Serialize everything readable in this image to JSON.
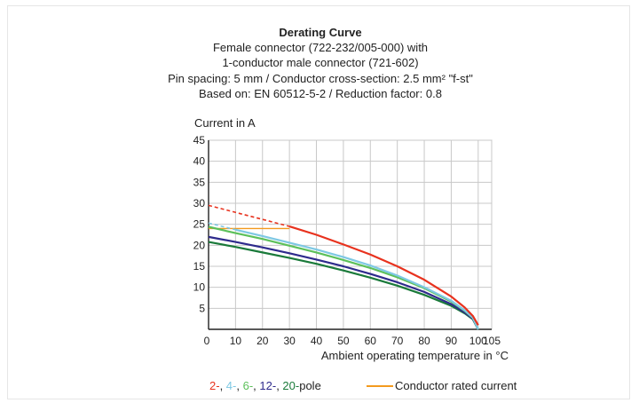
{
  "chart_data": {
    "type": "line",
    "title": "Derating Curve",
    "subtitle_lines": [
      "Female connector (722-232/005-000) with",
      "1-conductor male connector (721-602)",
      "Pin spacing: 5 mm / Conductor cross-section: 2.5 mm² \"f-st\"",
      "Based on: EN 60512-5-2 / Reduction factor: 0.8"
    ],
    "ylabel": "Current in A",
    "xlabel": "Ambient operating temperature in °C",
    "xlim": [
      0,
      105
    ],
    "ylim": [
      0,
      45
    ],
    "x_ticks": [
      10,
      20,
      30,
      40,
      50,
      60,
      70,
      80,
      90,
      100,
      105
    ],
    "y_ticks": [
      0,
      5,
      10,
      15,
      20,
      25,
      30,
      35,
      40,
      45
    ],
    "grid": true,
    "colors": {
      "pole2": "#e8321e",
      "pole4": "#7ec8e3",
      "pole6": "#5cc05a",
      "pole12": "#2e2a8c",
      "pole20": "#1a7a3a",
      "rated": "#f39a1e"
    },
    "legend": {
      "poles_parts": [
        {
          "text": "2-",
          "color": "#e8321e"
        },
        {
          "text": ", ",
          "color": "#222222"
        },
        {
          "text": "4-",
          "color": "#7ec8e3"
        },
        {
          "text": ", ",
          "color": "#222222"
        },
        {
          "text": "6-",
          "color": "#5cc05a"
        },
        {
          "text": ", ",
          "color": "#222222"
        },
        {
          "text": "12-",
          "color": "#2e2a8c"
        },
        {
          "text": ", ",
          "color": "#222222"
        },
        {
          "text": "20-",
          "color": "#1a7a3a"
        },
        {
          "text": "pole",
          "color": "#222222"
        }
      ],
      "rated_label": "Conductor rated current"
    },
    "series": [
      {
        "key": "pole2",
        "color": "#e8321e",
        "dashed_x": [
          0,
          30
        ],
        "dashed_y": [
          29.5,
          24.5
        ],
        "x": [
          30,
          40,
          50,
          60,
          70,
          80,
          90,
          95,
          98,
          100
        ],
        "y": [
          24.5,
          22.5,
          20.2,
          17.8,
          15.0,
          11.8,
          7.8,
          5.2,
          3.2,
          1.0
        ]
      },
      {
        "key": "pole4",
        "color": "#7ec8e3",
        "dashed_x": [
          0,
          10
        ],
        "dashed_y": [
          25.3,
          23.7
        ],
        "x": [
          10,
          20,
          30,
          40,
          50,
          60,
          70,
          80,
          90,
          95,
          98,
          100
        ],
        "y": [
          23.7,
          22.2,
          20.6,
          19.0,
          17.2,
          15.2,
          12.8,
          10.0,
          6.8,
          4.5,
          2.8,
          0.0
        ]
      },
      {
        "key": "pole6",
        "color": "#5cc05a",
        "dashed_x": [],
        "dashed_y": [],
        "x": [
          0,
          10,
          20,
          30,
          40,
          50,
          60,
          70,
          80,
          90,
          95,
          98,
          100
        ],
        "y": [
          24.4,
          22.9,
          21.5,
          19.9,
          18.3,
          16.5,
          14.6,
          12.4,
          9.8,
          6.6,
          4.4,
          2.7,
          0.0
        ]
      },
      {
        "key": "pole12",
        "color": "#2e2a8c",
        "dashed_x": [],
        "dashed_y": [],
        "x": [
          0,
          10,
          20,
          30,
          40,
          50,
          60,
          70,
          80,
          90,
          95,
          98,
          100
        ],
        "y": [
          22.0,
          20.8,
          19.5,
          18.1,
          16.6,
          15.0,
          13.2,
          11.2,
          8.9,
          6.0,
          4.0,
          2.5,
          0.0
        ]
      },
      {
        "key": "pole20",
        "color": "#1a7a3a",
        "dashed_x": [],
        "dashed_y": [],
        "x": [
          0,
          10,
          20,
          30,
          40,
          50,
          60,
          70,
          80,
          90,
          95,
          98,
          100
        ],
        "y": [
          20.8,
          19.6,
          18.3,
          17.0,
          15.6,
          14.0,
          12.3,
          10.4,
          8.2,
          5.6,
          3.8,
          2.4,
          0.0
        ]
      }
    ],
    "rated_current": {
      "color": "#f39a1e",
      "x": [
        0,
        30
      ],
      "y": [
        24.0,
        24.0
      ]
    }
  }
}
